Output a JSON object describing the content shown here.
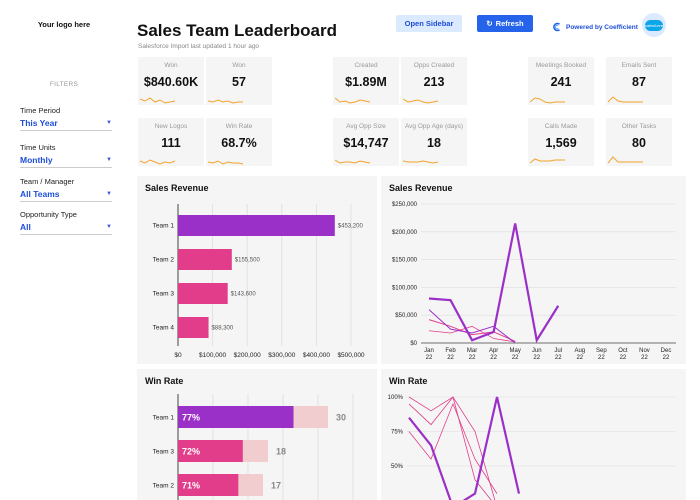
{
  "sidebar": {
    "logo": "Your logo here",
    "filters_heading": "FILTERS",
    "filters": [
      {
        "label": "Time Period",
        "value": "This Year"
      },
      {
        "label": "Time Units",
        "value": "Monthly"
      },
      {
        "label": "Team / Manager",
        "value": "All Teams"
      },
      {
        "label": "Opportunity Type",
        "value": "All"
      }
    ]
  },
  "header": {
    "title": "Sales Team Leaderboard",
    "subtitle": "Salesforce Import last updated 1 hour ago",
    "open_sidebar": "Open Sidebar",
    "refresh": "Refresh",
    "powered_by": "Powered by Coefficient",
    "salesforce_badge": "salesforce"
  },
  "kpis": [
    {
      "label": "Won",
      "value": "$840.60K"
    },
    {
      "label": "Won",
      "value": "57"
    },
    {
      "label": "Created",
      "value": "$1.89M"
    },
    {
      "label": "Opps Created",
      "value": "213"
    },
    {
      "label": "Meetings Booked",
      "value": "241"
    },
    {
      "label": "Emails Sent",
      "value": "87"
    },
    {
      "label": "New Logos",
      "value": "111"
    },
    {
      "label": "Win Rate",
      "value": "68.7%"
    },
    {
      "label": "Avg Opp Size",
      "value": "$14,747"
    },
    {
      "label": "Avg Opp Age (days)",
      "value": "18"
    },
    {
      "label": "Calls Made",
      "value": "1,569"
    },
    {
      "label": "Other Tasks",
      "value": "80"
    }
  ],
  "colors": {
    "accent_blue": "#2563eb",
    "purple": "#9b30c8",
    "pink": "#e23d8a",
    "light_pink": "#f2cdd0",
    "sparkline": "#f4a32a"
  },
  "chart_data": [
    {
      "type": "bar",
      "title": "Sales Revenue",
      "orientation": "horizontal",
      "categories": [
        "Team 1",
        "Team 2",
        "Team 3",
        "Team 4"
      ],
      "values": [
        453200,
        155500,
        143600,
        88300
      ],
      "value_labels": [
        "$453,200",
        "$155,500",
        "$143,600",
        "$88,300"
      ],
      "ticks": [
        "$0",
        "$100,000",
        "$200,000",
        "$300,000",
        "$400,000",
        "$500,000"
      ],
      "xlim": [
        0,
        500000
      ]
    },
    {
      "type": "line",
      "title": "Sales Revenue",
      "categories": [
        "Jan 22",
        "Feb 22",
        "Mar 22",
        "Apr 22",
        "May 22",
        "Jun 22",
        "Jul 22",
        "Aug 22",
        "Sep 22",
        "Oct 22",
        "Nov 22",
        "Dec 22"
      ],
      "y_ticks": [
        "$0",
        "$50,000",
        "$100,000",
        "$150,000",
        "$200,000",
        "$250,000"
      ],
      "ylim": [
        0,
        250000
      ],
      "series": [
        {
          "values": [
            80000,
            77000,
            5000,
            20000,
            215000,
            5000,
            67000,
            null,
            null,
            null,
            null,
            null
          ]
        },
        {
          "values": [
            60000,
            25000,
            18000,
            30000,
            0,
            null,
            null,
            null,
            null,
            null,
            null,
            null
          ]
        },
        {
          "values": [
            42000,
            30000,
            15000,
            20000,
            3000,
            null,
            null,
            null,
            null,
            null,
            null,
            null
          ]
        },
        {
          "values": [
            22000,
            18000,
            30000,
            8000,
            2000,
            null,
            null,
            null,
            null,
            null,
            null,
            null
          ]
        }
      ]
    },
    {
      "type": "bar",
      "title": "Win Rate",
      "orientation": "horizontal",
      "categories": [
        "Team 1",
        "Team 3",
        "Team 2"
      ],
      "values": [
        77,
        72,
        71
      ],
      "value_labels": [
        "77%",
        "72%",
        "71%"
      ],
      "totals": [
        30,
        18,
        17
      ],
      "xlim": [
        0,
        35
      ]
    },
    {
      "type": "line",
      "title": "Win Rate",
      "y_ticks": [
        "50%",
        "75%",
        "100%"
      ],
      "ylim": [
        40,
        100
      ],
      "series": [
        {
          "values": [
            85,
            65,
            20,
            30,
            100,
            30
          ]
        },
        {
          "values": [
            100,
            90,
            100,
            75,
            20,
            null
          ]
        },
        {
          "values": [
            95,
            80,
            100,
            40,
            20,
            null
          ]
        },
        {
          "values": [
            75,
            55,
            95,
            55,
            30,
            null
          ]
        }
      ]
    }
  ]
}
